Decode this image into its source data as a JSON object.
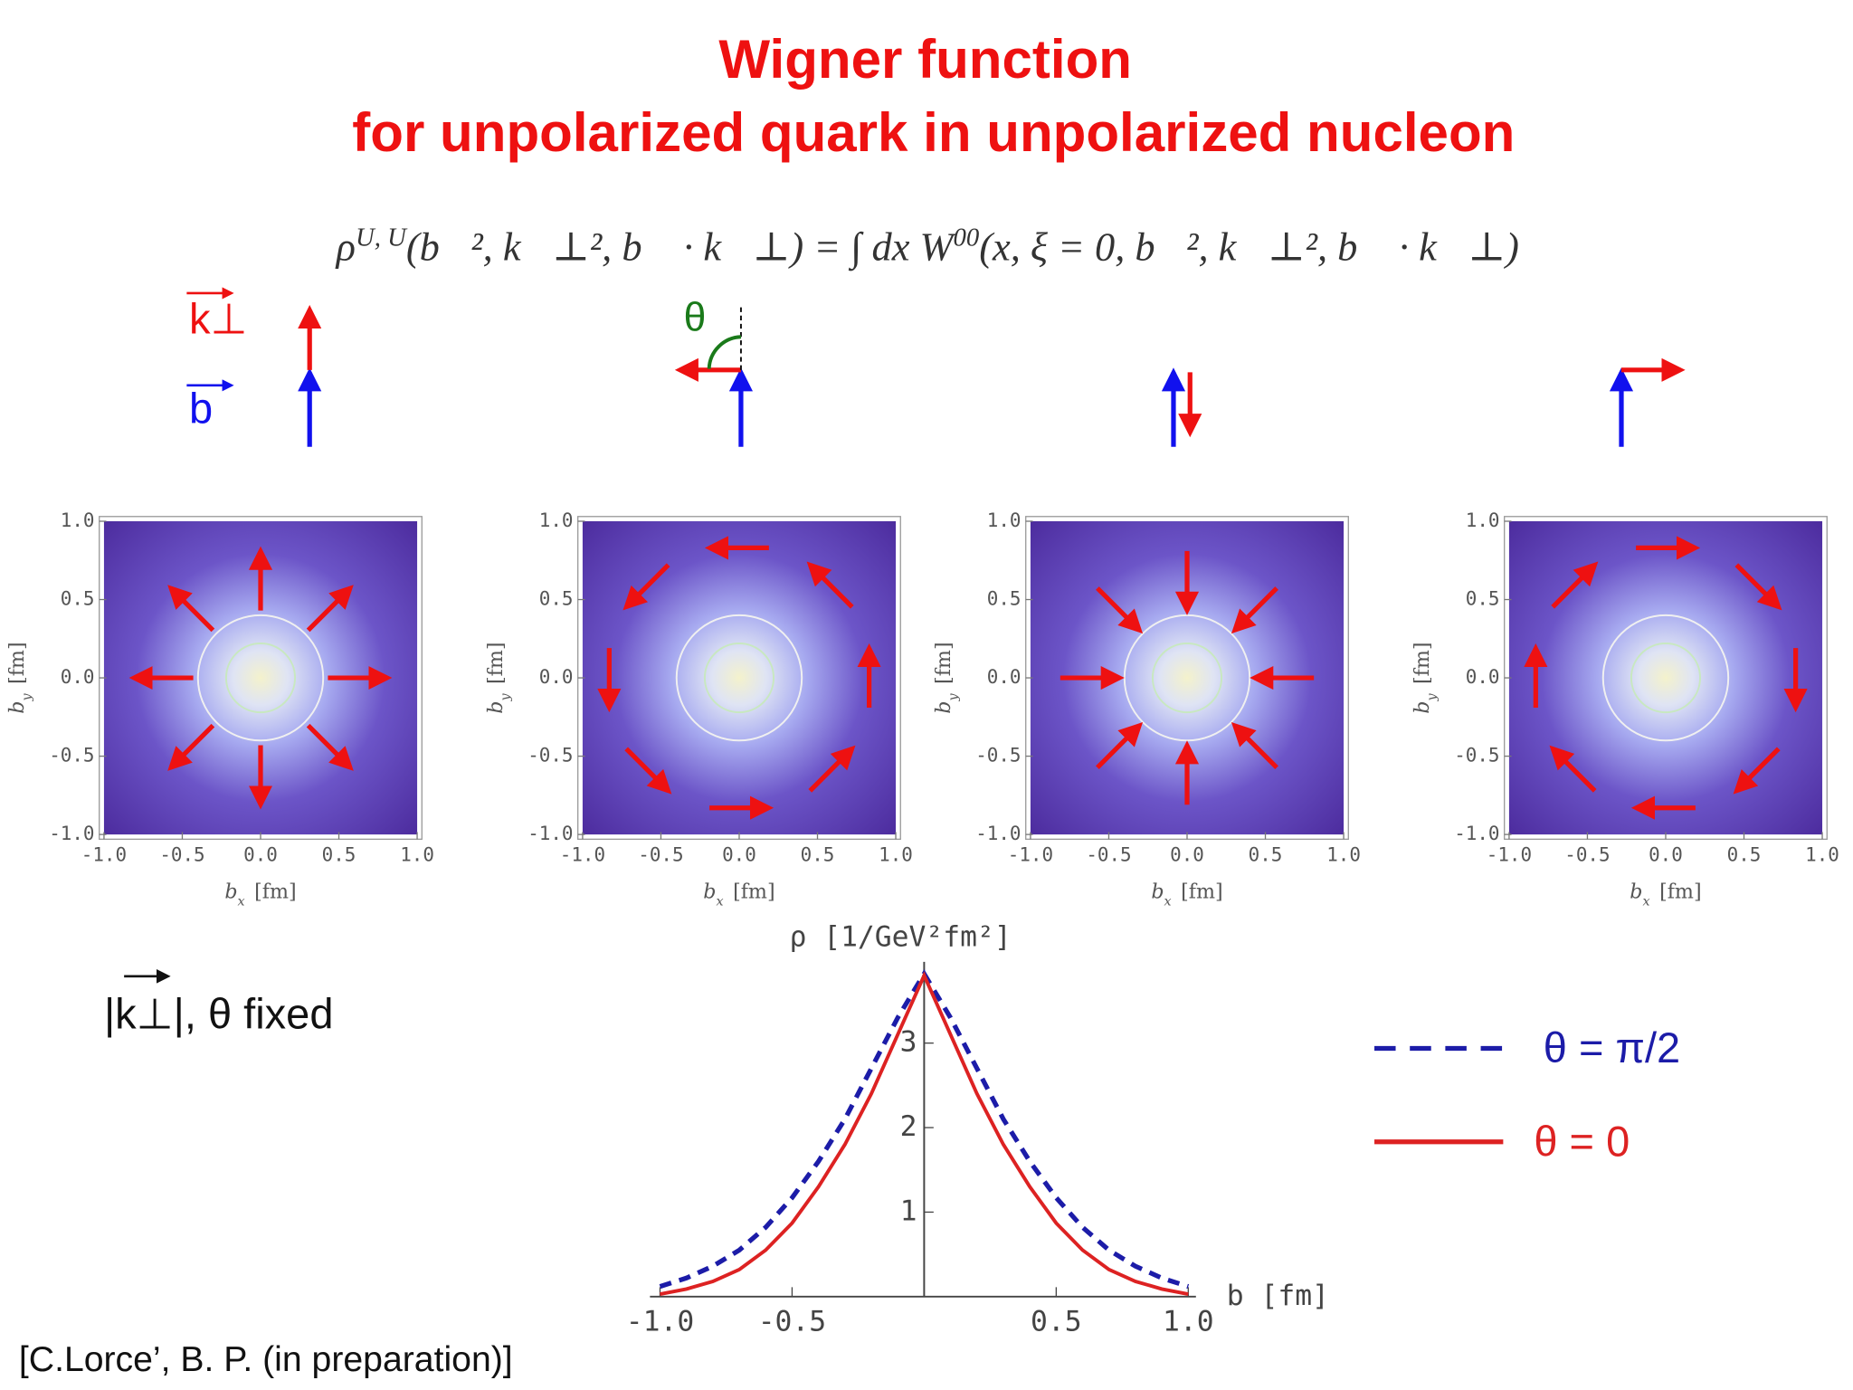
{
  "title": [
    "Wigner function",
    "for unpolarized quark in unpolarized nucleon"
  ],
  "formula": [
    {
      "text": "ρ"
    },
    {
      "text": "U, U",
      "sup": true
    },
    {
      "text": "(b⃗², k⃗⊥², b⃗ · k⃗⊥) = ∫ dx W"
    },
    {
      "text": "00",
      "sup": true
    },
    {
      "text": "(x, ξ = 0, b⃗², k⃗⊥², b⃗ · k⃗⊥)"
    }
  ],
  "vector_labels": {
    "k": "k⊥",
    "b": "b",
    "theta": "θ"
  },
  "note": "|k⊥|, θ fixed",
  "citation": "[C.Lorce’, B. P. (in preparation)]",
  "chart_data": [
    {
      "type": "heatmap",
      "xlim": [
        -1,
        1
      ],
      "ylim": [
        -1,
        1
      ],
      "xticks": [
        {
          "value": -1,
          "label": "-1.0"
        },
        {
          "value": -0.5,
          "label": "-0.5"
        },
        {
          "value": 0,
          "label": "0.0"
        },
        {
          "value": 0.5,
          "label": "0.5"
        },
        {
          "value": 1,
          "label": "1.0"
        }
      ],
      "yticks": [
        {
          "value": -1,
          "label": "-1.0"
        },
        {
          "value": -0.5,
          "label": "-0.5"
        },
        {
          "value": 0,
          "label": "0.0"
        },
        {
          "value": 0.5,
          "label": "0.5"
        },
        {
          "value": 1,
          "label": "1.0"
        }
      ],
      "xlabel": {
        "symbol": "b",
        "sub": "x",
        "unit": "[fm]"
      },
      "ylabel": {
        "symbol": "b",
        "sub": "y",
        "unit": "[fm]"
      }
    },
    {
      "type": "heatmap",
      "xlim": [
        -1,
        1
      ],
      "ylim": [
        -1,
        1
      ],
      "xticks": [
        {
          "value": -1,
          "label": "-1.0"
        },
        {
          "value": -0.5,
          "label": "-0.5"
        },
        {
          "value": 0,
          "label": "0.0"
        },
        {
          "value": 0.5,
          "label": "0.5"
        },
        {
          "value": 1,
          "label": "1.0"
        }
      ],
      "yticks": [
        {
          "value": -1,
          "label": "-1.0"
        },
        {
          "value": -0.5,
          "label": "-0.5"
        },
        {
          "value": 0,
          "label": "0.0"
        },
        {
          "value": 0.5,
          "label": "0.5"
        },
        {
          "value": 1,
          "label": "1.0"
        }
      ],
      "xlabel": {
        "symbol": "b",
        "sub": "x",
        "unit": "[fm]"
      },
      "ylabel": {
        "symbol": "b",
        "sub": "y",
        "unit": "[fm]"
      }
    },
    {
      "type": "heatmap",
      "xlim": [
        -1,
        1
      ],
      "ylim": [
        -1,
        1
      ],
      "xticks": [
        {
          "value": -1,
          "label": "-1.0"
        },
        {
          "value": -0.5,
          "label": "-0.5"
        },
        {
          "value": 0,
          "label": "0.0"
        },
        {
          "value": 0.5,
          "label": "0.5"
        },
        {
          "value": 1,
          "label": "1.0"
        }
      ],
      "yticks": [
        {
          "value": -1,
          "label": "-1.0"
        },
        {
          "value": -0.5,
          "label": "-0.5"
        },
        {
          "value": 0,
          "label": "0.0"
        },
        {
          "value": 0.5,
          "label": "0.5"
        },
        {
          "value": 1,
          "label": "1.0"
        }
      ],
      "xlabel": {
        "symbol": "b",
        "sub": "x",
        "unit": "[fm]"
      },
      "ylabel": {
        "symbol": "b",
        "sub": "y",
        "unit": "[fm]"
      }
    },
    {
      "type": "heatmap",
      "xlim": [
        -1,
        1
      ],
      "ylim": [
        -1,
        1
      ],
      "xticks": [
        {
          "value": -1,
          "label": "-1.0"
        },
        {
          "value": -0.5,
          "label": "-0.5"
        },
        {
          "value": 0,
          "label": "0.0"
        },
        {
          "value": 0.5,
          "label": "0.5"
        },
        {
          "value": 1,
          "label": "1.0"
        }
      ],
      "yticks": [
        {
          "value": -1,
          "label": "-1.0"
        },
        {
          "value": -0.5,
          "label": "-0.5"
        },
        {
          "value": 0,
          "label": "0.0"
        },
        {
          "value": 0.5,
          "label": "0.5"
        },
        {
          "value": 1,
          "label": "1.0"
        }
      ],
      "xlabel": {
        "symbol": "b",
        "sub": "x",
        "unit": "[fm]"
      },
      "ylabel": {
        "symbol": "b",
        "sub": "y",
        "unit": "[fm]"
      }
    },
    {
      "type": "line",
      "xlabel": "b  [fm]",
      "ylabel": "ρ  [1/GeV²fm²]",
      "x": [
        -1.0,
        -0.9,
        -0.8,
        -0.7,
        -0.6,
        -0.5,
        -0.4,
        -0.3,
        -0.2,
        -0.1,
        0.0,
        0.1,
        0.2,
        0.3,
        0.4,
        0.5,
        0.6,
        0.7,
        0.8,
        0.9,
        1.0
      ],
      "xlim": [
        -1,
        1
      ],
      "ylim": [
        0,
        3.85
      ],
      "xticks": [
        {
          "value": -1,
          "label": "-1.0"
        },
        {
          "value": -0.5,
          "label": "-0.5"
        },
        {
          "value": 0.5,
          "label": "0.5"
        },
        {
          "value": 1,
          "label": "1.0"
        }
      ],
      "yticks": [
        1,
        2,
        3
      ],
      "series": [
        {
          "name": "θ = π/2",
          "color": "#1c1ca8",
          "dashed": true,
          "values": [
            0.12,
            0.22,
            0.36,
            0.55,
            0.82,
            1.17,
            1.6,
            2.1,
            2.7,
            3.3,
            3.82,
            3.3,
            2.7,
            2.1,
            1.6,
            1.17,
            0.82,
            0.55,
            0.36,
            0.22,
            0.12
          ]
        },
        {
          "name": "θ = 0",
          "color": "#dd2222",
          "dashed": false,
          "values": [
            0.03,
            0.09,
            0.18,
            0.32,
            0.55,
            0.87,
            1.3,
            1.8,
            2.4,
            3.1,
            3.8,
            3.1,
            2.4,
            1.8,
            1.3,
            0.87,
            0.55,
            0.32,
            0.18,
            0.09,
            0.03
          ]
        }
      ]
    }
  ]
}
